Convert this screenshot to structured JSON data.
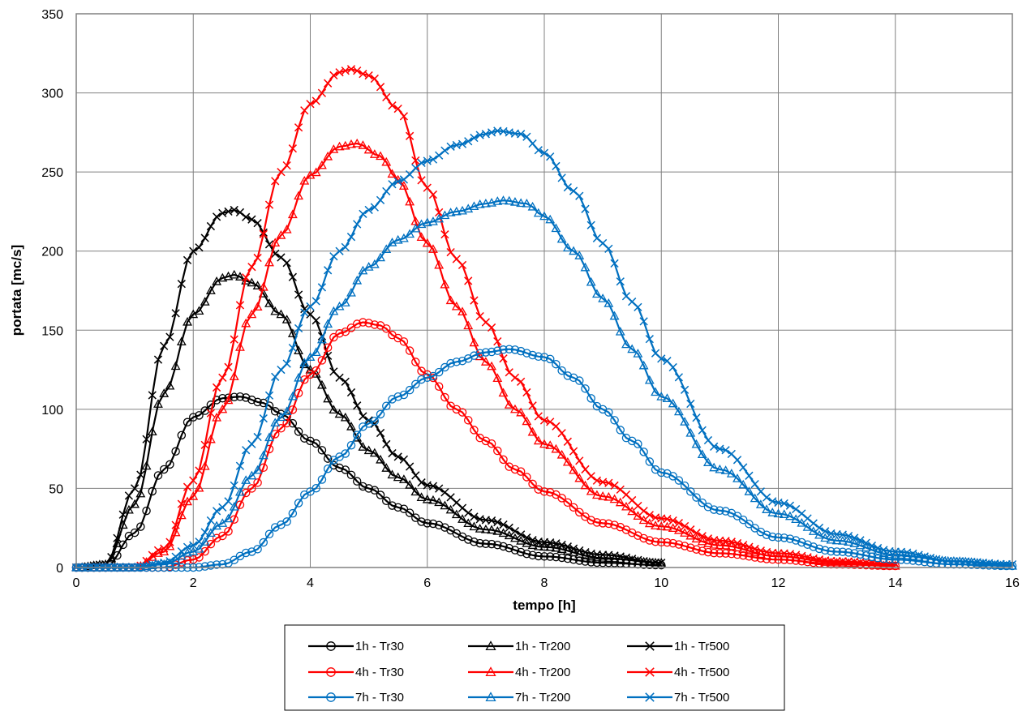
{
  "chart_data": {
    "type": "line",
    "title": "",
    "xlabel": "tempo [h]",
    "ylabel": "portata [mc/s]",
    "xlim": [
      0,
      16
    ],
    "ylim": [
      0,
      350
    ],
    "xticks": [
      0,
      2,
      4,
      6,
      8,
      10,
      12,
      14,
      16
    ],
    "yticks": [
      0,
      50,
      100,
      150,
      200,
      250,
      300,
      350
    ],
    "grid": true,
    "legend_position": "bottom",
    "series": [
      {
        "name": "1h - Tr30",
        "color": "#000000",
        "marker": "circle",
        "points": [
          [
            0,
            0
          ],
          [
            0.5,
            0
          ],
          [
            1,
            22
          ],
          [
            1.5,
            62
          ],
          [
            2,
            95
          ],
          [
            2.5,
            107
          ],
          [
            2.8,
            108
          ],
          [
            3.2,
            104
          ],
          [
            3.5,
            97
          ],
          [
            4,
            80
          ],
          [
            4.5,
            63
          ],
          [
            5,
            50
          ],
          [
            5.5,
            38
          ],
          [
            6,
            28
          ],
          [
            7,
            15
          ],
          [
            8,
            7
          ],
          [
            9,
            3
          ],
          [
            10,
            1.5
          ]
        ]
      },
      {
        "name": "1h - Tr200",
        "color": "#000000",
        "marker": "triangle",
        "points": [
          [
            0,
            0
          ],
          [
            0.5,
            2
          ],
          [
            1,
            40
          ],
          [
            1.5,
            110
          ],
          [
            2,
            160
          ],
          [
            2.5,
            183
          ],
          [
            2.7,
            185
          ],
          [
            3,
            180
          ],
          [
            3.5,
            160
          ],
          [
            4,
            125
          ],
          [
            4.5,
            97
          ],
          [
            5,
            74
          ],
          [
            5.5,
            57
          ],
          [
            6,
            43
          ],
          [
            7,
            24
          ],
          [
            8,
            13
          ],
          [
            9,
            6
          ],
          [
            10,
            3
          ]
        ]
      },
      {
        "name": "1h - Tr500",
        "color": "#000000",
        "marker": "cross",
        "points": [
          [
            0,
            0
          ],
          [
            0.5,
            2
          ],
          [
            1,
            50
          ],
          [
            1.5,
            140
          ],
          [
            2,
            200
          ],
          [
            2.5,
            224
          ],
          [
            2.7,
            226
          ],
          [
            3,
            220
          ],
          [
            3.5,
            196
          ],
          [
            4,
            160
          ],
          [
            4.5,
            120
          ],
          [
            5,
            93
          ],
          [
            5.5,
            70
          ],
          [
            6,
            52
          ],
          [
            7,
            30
          ],
          [
            8,
            16
          ],
          [
            9,
            8
          ],
          [
            10,
            3
          ]
        ]
      },
      {
        "name": "4h - Tr30",
        "color": "#ff0000",
        "marker": "circle",
        "points": [
          [
            1.5,
            0
          ],
          [
            2,
            5
          ],
          [
            2.5,
            20
          ],
          [
            3,
            50
          ],
          [
            3.5,
            88
          ],
          [
            4,
            122
          ],
          [
            4.5,
            148
          ],
          [
            4.9,
            155
          ],
          [
            5.2,
            153
          ],
          [
            5.5,
            145
          ],
          [
            6,
            122
          ],
          [
            6.5,
            100
          ],
          [
            7,
            80
          ],
          [
            7.5,
            62
          ],
          [
            8,
            48
          ],
          [
            9,
            28
          ],
          [
            10,
            16
          ],
          [
            11,
            9
          ],
          [
            12,
            5
          ],
          [
            13,
            2
          ],
          [
            14,
            1
          ]
        ]
      },
      {
        "name": "4h - Tr200",
        "color": "#ff0000",
        "marker": "triangle",
        "points": [
          [
            1,
            0
          ],
          [
            1.5,
            10
          ],
          [
            2,
            45
          ],
          [
            2.5,
            100
          ],
          [
            3,
            160
          ],
          [
            3.5,
            210
          ],
          [
            4,
            248
          ],
          [
            4.5,
            266
          ],
          [
            4.8,
            268
          ],
          [
            5.2,
            260
          ],
          [
            5.5,
            245
          ],
          [
            6,
            205
          ],
          [
            6.5,
            165
          ],
          [
            7,
            130
          ],
          [
            7.5,
            100
          ],
          [
            8,
            78
          ],
          [
            9,
            45
          ],
          [
            10,
            26
          ],
          [
            11,
            14
          ],
          [
            12,
            7
          ],
          [
            13,
            3
          ],
          [
            14,
            1
          ]
        ]
      },
      {
        "name": "4h - Tr500",
        "color": "#ff0000",
        "marker": "cross",
        "points": [
          [
            1,
            0
          ],
          [
            1.5,
            12
          ],
          [
            2,
            55
          ],
          [
            2.5,
            120
          ],
          [
            3,
            190
          ],
          [
            3.5,
            250
          ],
          [
            4,
            293
          ],
          [
            4.5,
            313
          ],
          [
            4.7,
            315
          ],
          [
            5,
            311
          ],
          [
            5.5,
            290
          ],
          [
            6,
            240
          ],
          [
            6.5,
            195
          ],
          [
            7,
            155
          ],
          [
            7.5,
            120
          ],
          [
            8,
            93
          ],
          [
            9,
            54
          ],
          [
            10,
            31
          ],
          [
            11,
            17
          ],
          [
            12,
            9
          ],
          [
            13,
            4
          ],
          [
            14,
            2
          ]
        ]
      },
      {
        "name": "7h - Tr30",
        "color": "#0070c0",
        "marker": "circle",
        "points": [
          [
            1.5,
            0
          ],
          [
            2,
            0
          ],
          [
            2.5,
            2
          ],
          [
            3,
            10
          ],
          [
            3.5,
            27
          ],
          [
            4,
            48
          ],
          [
            4.5,
            70
          ],
          [
            5,
            91
          ],
          [
            5.5,
            108
          ],
          [
            6,
            120
          ],
          [
            6.5,
            130
          ],
          [
            7,
            136
          ],
          [
            7.4,
            138
          ],
          [
            8,
            133
          ],
          [
            8.5,
            120
          ],
          [
            9,
            100
          ],
          [
            9.5,
            80
          ],
          [
            10,
            60
          ],
          [
            11,
            36
          ],
          [
            12,
            19
          ],
          [
            13,
            10
          ],
          [
            14,
            5
          ],
          [
            15,
            2
          ],
          [
            16,
            1
          ]
        ]
      },
      {
        "name": "7h - Tr200",
        "color": "#0070c0",
        "marker": "triangle",
        "points": [
          [
            1,
            0
          ],
          [
            1.5,
            2
          ],
          [
            2,
            10
          ],
          [
            2.5,
            28
          ],
          [
            3,
            58
          ],
          [
            3.5,
            95
          ],
          [
            4,
            133
          ],
          [
            4.5,
            165
          ],
          [
            5,
            190
          ],
          [
            5.5,
            207
          ],
          [
            6,
            218
          ],
          [
            6.5,
            225
          ],
          [
            7,
            230
          ],
          [
            7.3,
            232
          ],
          [
            7.7,
            230
          ],
          [
            8,
            222
          ],
          [
            8.5,
            200
          ],
          [
            9,
            170
          ],
          [
            9.5,
            138
          ],
          [
            10,
            108
          ],
          [
            11,
            62
          ],
          [
            12,
            34
          ],
          [
            13,
            17
          ],
          [
            14,
            8
          ],
          [
            15,
            4
          ],
          [
            16,
            1
          ]
        ]
      },
      {
        "name": "7h - Tr500",
        "color": "#0070c0",
        "marker": "cross",
        "points": [
          [
            1,
            0
          ],
          [
            1.5,
            3
          ],
          [
            2,
            14
          ],
          [
            2.5,
            38
          ],
          [
            3,
            78
          ],
          [
            3.5,
            125
          ],
          [
            4,
            165
          ],
          [
            4.5,
            200
          ],
          [
            5,
            226
          ],
          [
            5.5,
            244
          ],
          [
            6,
            257
          ],
          [
            6.5,
            267
          ],
          [
            7,
            274
          ],
          [
            7.2,
            276
          ],
          [
            7.6,
            274
          ],
          [
            8,
            262
          ],
          [
            8.5,
            238
          ],
          [
            9,
            205
          ],
          [
            9.5,
            168
          ],
          [
            10,
            132
          ],
          [
            11,
            75
          ],
          [
            12,
            41
          ],
          [
            13,
            21
          ],
          [
            14,
            10
          ],
          [
            15,
            4
          ],
          [
            16,
            2
          ]
        ]
      }
    ]
  }
}
